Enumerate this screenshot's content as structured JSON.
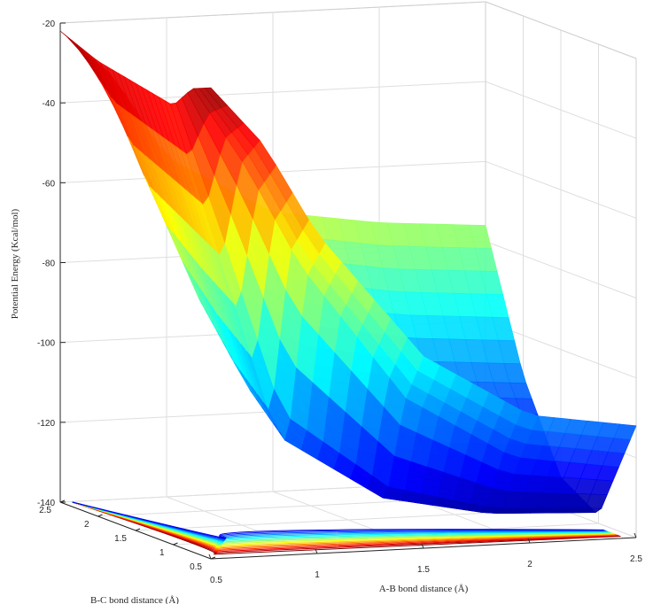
{
  "chart_data": {
    "type": "surface",
    "title": "",
    "xlabel": "A-B bond distance (Å)",
    "ylabel": "B-C bond distance (Å)",
    "zlabel": "Potential Energy (Kcal/mol)",
    "xlim": [
      0.5,
      2.5
    ],
    "ylim": [
      0.5,
      2.5
    ],
    "zlim": [
      -140,
      -20
    ],
    "x_ticks": [
      "0.5",
      "1",
      "1.5",
      "2",
      "2.5"
    ],
    "y_ticks": [
      "0.5",
      "1",
      "1.5",
      "2",
      "2.5"
    ],
    "z_ticks": [
      "-20",
      "-40",
      "-60",
      "-80",
      "-100",
      "-120",
      "-140"
    ],
    "colormap": "jet",
    "grid": true,
    "contour_projection": true,
    "profiles": [
      {
        "r_bc": 0.5,
        "r_ab": [
          0.5,
          0.75,
          1.0,
          1.5,
          2.0,
          2.5
        ],
        "energy": [
          -22,
          -37,
          -60,
          -92,
          -108,
          -112
        ]
      },
      {
        "r_bc": 0.75,
        "r_ab": [
          0.5,
          0.75,
          1.0,
          1.5,
          2.0,
          2.5
        ],
        "energy": [
          -24,
          -45,
          -70,
          -105,
          -121,
          -125
        ]
      },
      {
        "r_bc": 1.0,
        "r_ab": [
          0.5,
          0.75,
          1.0,
          1.5,
          2.0,
          2.5
        ],
        "energy": [
          -30,
          -72,
          -115,
          -132,
          -137,
          -138
        ]
      },
      {
        "r_bc": 1.5,
        "r_ab": [
          0.5,
          0.75,
          1.0,
          1.5,
          2.0,
          2.5
        ],
        "energy": [
          -28,
          -66,
          -105,
          -122,
          -130,
          -132
        ]
      },
      {
        "r_bc": 2.0,
        "r_ab": [
          0.5,
          0.75,
          1.0,
          1.5,
          2.0,
          2.5
        ],
        "energy": [
          -26,
          -60,
          -90,
          -103,
          -108,
          -110
        ]
      },
      {
        "r_bc": 2.5,
        "r_ab": [
          0.5,
          0.75,
          1.0,
          1.5,
          2.0,
          2.5
        ],
        "energy": [
          -22,
          -34,
          -55,
          -70,
          -74,
          -76
        ]
      }
    ]
  }
}
